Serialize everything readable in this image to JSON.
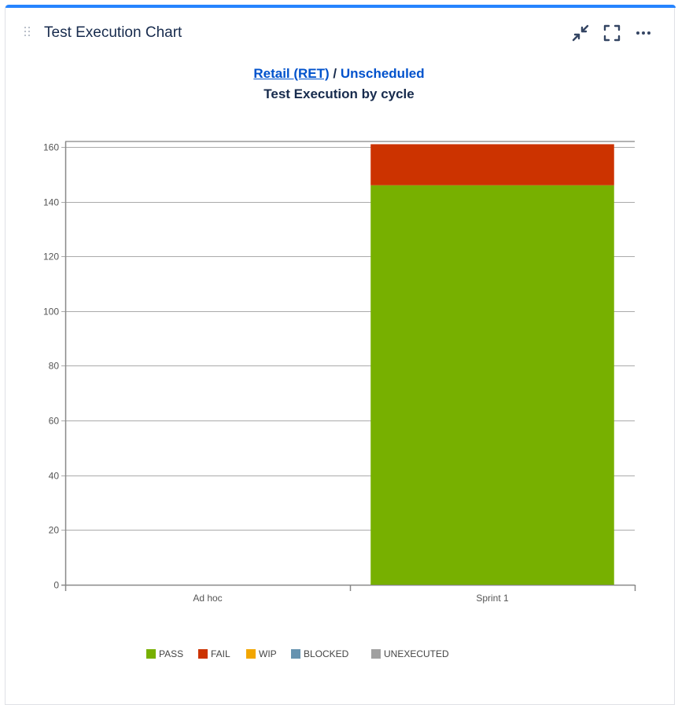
{
  "gadget": {
    "title": "Test Execution Chart",
    "header_icons": [
      "collapse-icon",
      "fullscreen-icon",
      "more-options-icon"
    ]
  },
  "subtitle": {
    "project_link": "Retail (RET)",
    "separator": "/",
    "version_link": "Unscheduled"
  },
  "chart_data": {
    "type": "bar",
    "stacked": true,
    "title": "Test Execution by cycle",
    "categories": [
      "Ad hoc",
      "Sprint 1"
    ],
    "series": [
      {
        "name": "PASS",
        "color": "#77b000",
        "values": [
          0,
          146
        ]
      },
      {
        "name": "FAIL",
        "color": "#cc3300",
        "values": [
          0,
          15
        ]
      },
      {
        "name": "WIP",
        "color": "#f2a600",
        "values": [
          0,
          0
        ]
      },
      {
        "name": "BLOCKED",
        "color": "#6693b0",
        "values": [
          0,
          0
        ]
      },
      {
        "name": "UNEXECUTED",
        "color": "#a0a0a0",
        "values": [
          0,
          0
        ]
      }
    ],
    "yticks": [
      0,
      20,
      40,
      60,
      80,
      100,
      120,
      140,
      160
    ],
    "ylim": [
      0,
      162
    ],
    "xlabel": "",
    "ylabel": "",
    "grid": true,
    "legend_position": "bottom"
  },
  "colors": {
    "accent": "#2684ff",
    "link": "#0052cc",
    "title_text": "#172b4d"
  }
}
